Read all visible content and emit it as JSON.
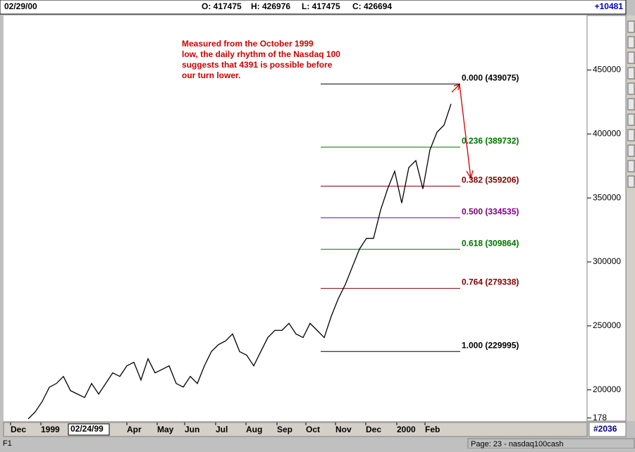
{
  "header": {
    "date": "02/29/00",
    "open": "O: 417475",
    "high": "H: 426976",
    "low": "L: 417475",
    "close": "C: 426694",
    "change": "+10481"
  },
  "status": {
    "key": "F1",
    "page": "Page: 23 - nasdaq100cash",
    "bar_count": "#2036",
    "cursor_date": "02/24/99"
  },
  "chart_data": {
    "type": "line",
    "annotation": [
      "Measured from the October 1999",
      "low, the daily rhythm of the Nasdaq 100",
      "suggests that 4391 is possible before",
      "our turn lower."
    ],
    "series": [
      {
        "name": "Nasdaq 100",
        "color": "#000000",
        "values": [
          177300,
          182800,
          191000,
          202000,
          205000,
          210500,
          199400,
          196700,
          194000,
          205000,
          196700,
          205000,
          213300,
          210500,
          218800,
          221600,
          207700,
          224300,
          213300,
          216000,
          218800,
          205000,
          202200,
          210500,
          205000,
          218800,
          230000,
          235400,
          238200,
          243700,
          229900,
          227100,
          218800,
          229900,
          240900,
          246500,
          246500,
          252000,
          243700,
          240900,
          252000,
          246500,
          240900,
          257500,
          271300,
          282400,
          296200,
          310000,
          318400,
          318400,
          340500,
          357100,
          370900,
          346000,
          373700,
          379200,
          357100,
          387500,
          401300,
          406900,
          423500
        ]
      }
    ],
    "xlim": [
      -3.5,
      79.3
    ],
    "xticks": [
      {
        "value": -2.5,
        "label": "Dec"
      },
      {
        "value": 1.8,
        "label": "1999"
      },
      {
        "value": 14,
        "label": "Apr"
      },
      {
        "value": 18.3,
        "label": "May"
      },
      {
        "value": 22.2,
        "label": "Jun"
      },
      {
        "value": 26.6,
        "label": "Jul"
      },
      {
        "value": 30.9,
        "label": "Aug"
      },
      {
        "value": 35.3,
        "label": "Sep"
      },
      {
        "value": 39.4,
        "label": "Oct"
      },
      {
        "value": 43.6,
        "label": "Nov"
      },
      {
        "value": 47.9,
        "label": "Dec"
      },
      {
        "value": 52.3,
        "label": "2000"
      },
      {
        "value": 56.3,
        "label": "Feb"
      }
    ],
    "ylim": [
      176200,
      492600
    ],
    "yticks": [
      {
        "value": 178000,
        "label": "178"
      },
      200000,
      250000,
      300000,
      350000,
      400000,
      450000
    ],
    "fib_levels": [
      {
        "label": "0.000 (439075)",
        "value": 439075,
        "color": "#000000"
      },
      {
        "label": "0.236 (389732)",
        "value": 389732,
        "color": "#007000"
      },
      {
        "label": "0.382 (359206)",
        "value": 359206,
        "color": "#800000"
      },
      {
        "label": "0.500 (334535)",
        "value": 334535,
        "color": "#800080"
      },
      {
        "label": "0.618 (309864)",
        "value": 309864,
        "color": "#007000"
      },
      {
        "label": "0.764 (279338)",
        "value": 279338,
        "color": "#800000"
      },
      {
        "label": "1.000 (229995)",
        "value": 229995,
        "color": "#000000"
      }
    ]
  }
}
